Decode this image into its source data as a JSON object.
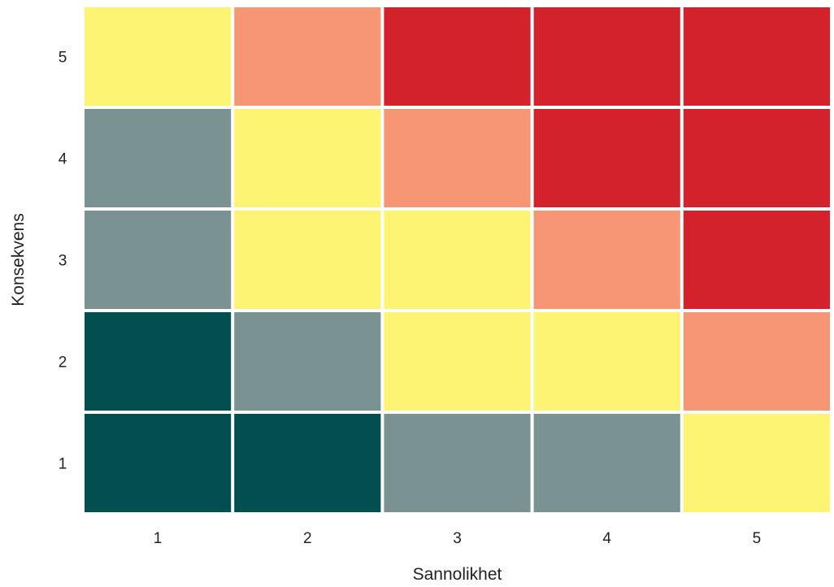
{
  "chart_data": {
    "type": "heatmap",
    "title": "",
    "xlabel": "Sannolikhet",
    "ylabel": "Konsekvens",
    "x_categories": [
      "1",
      "2",
      "3",
      "4",
      "5"
    ],
    "y_categories": [
      "1",
      "2",
      "3",
      "4",
      "5"
    ],
    "cells": [
      [
        "#034f50",
        "#034f50",
        "#7a9392",
        "#7a9392",
        "#fef474"
      ],
      [
        "#034f50",
        "#7a9392",
        "#fef474",
        "#fef474",
        "#f79675"
      ],
      [
        "#7a9392",
        "#fef474",
        "#fef474",
        "#f79675",
        "#d3222b"
      ],
      [
        "#7a9392",
        "#fef474",
        "#f79675",
        "#d3222b",
        "#d3222b"
      ],
      [
        "#fef474",
        "#f79675",
        "#d3222b",
        "#d3222b",
        "#d3222b"
      ]
    ],
    "grid": false,
    "legend": "none"
  }
}
